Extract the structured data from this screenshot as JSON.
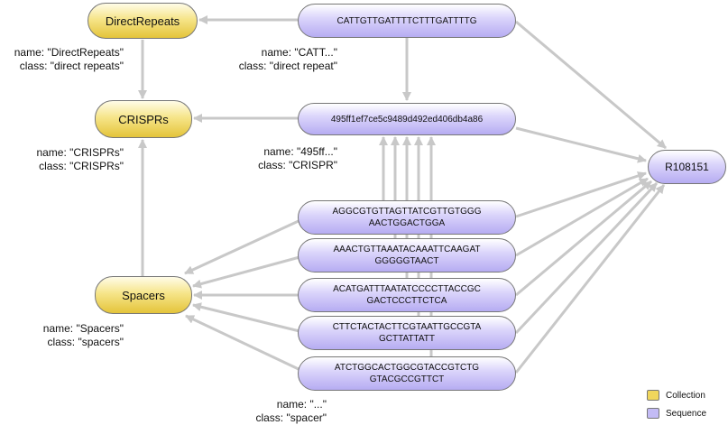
{
  "nodes": {
    "direct_repeats": "DirectRepeats",
    "crisprs": "CRISPRs",
    "spacers": "Spacers",
    "dr_seq": "CATTGTTGATTTTCTTTGATTTTG",
    "crispr_seq": "495ff1ef7ce5c9489d492ed406db4a86",
    "reference": "R108151",
    "spacer_seqs": [
      {
        "l1": "AGGCGTGTTAGTTATCGTTGTGGG",
        "l2": "AACTGGACTGGA"
      },
      {
        "l1": "AAACTGTTAAATACAAATTCAAGAT",
        "l2": "GGGGGTAACT"
      },
      {
        "l1": "ACATGATTTAATATCCCCTTACCGC",
        "l2": "GACTCCCTTCTCA"
      },
      {
        "l1": "CTTCTACTACTTCGTAATTGCCGTA",
        "l2": "GCTTATTATT"
      },
      {
        "l1": "ATCTGGCACTGGCGTACCGTCTG",
        "l2": "GTACGCCGTTCT"
      }
    ]
  },
  "labels": {
    "direct_repeats": {
      "name": "name: \"DirectRepeats\"",
      "class": "class: \"direct repeats\""
    },
    "dr_seq": {
      "name": "name: \"CATT...\"",
      "class": "class: \"direct repeat\""
    },
    "crisprs": {
      "name": "name: \"CRISPRs\"",
      "class": "class: \"CRISPRs\""
    },
    "crispr_seq": {
      "name": "name: \"495ff...\"",
      "class": "class: \"CRISPR\""
    },
    "spacers": {
      "name": "name: \"Spacers\"",
      "class": "class: \"spacers\""
    },
    "spacer": {
      "name": "name: \"...\"",
      "class": "class: \"spacer\""
    }
  },
  "legend": {
    "collection": "Collection",
    "sequence": "Sequence",
    "collection_color": "#f0d65c",
    "sequence_color": "#c3bbf5"
  },
  "colors": {
    "edge": "#c8c8c8"
  }
}
